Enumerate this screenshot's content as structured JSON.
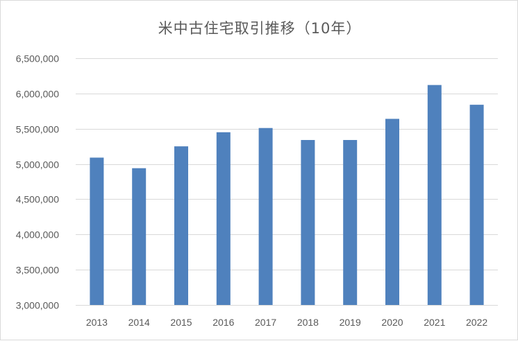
{
  "chart_data": {
    "type": "bar",
    "title": "米中古住宅取引推移（10年）",
    "xlabel": "",
    "ylabel": "",
    "categories": [
      "2013",
      "2014",
      "2015",
      "2016",
      "2017",
      "2018",
      "2019",
      "2020",
      "2021",
      "2022"
    ],
    "values": [
      5090000,
      4940000,
      5250000,
      5450000,
      5510000,
      5340000,
      5340000,
      5640000,
      6120000,
      5840000
    ],
    "ylim": [
      3000000,
      6500000
    ],
    "yticks": [
      3000000,
      3500000,
      4000000,
      4500000,
      5000000,
      5500000,
      6000000,
      6500000
    ],
    "ytick_labels": [
      "3,000,000",
      "3,500,000",
      "4,000,000",
      "4,500,000",
      "5,000,000",
      "5,500,000",
      "6,000,000",
      "6,500,000"
    ],
    "grid": true,
    "legend": "none",
    "bar_color": "#4f81bd",
    "grid_color": "#d9d9d9"
  }
}
